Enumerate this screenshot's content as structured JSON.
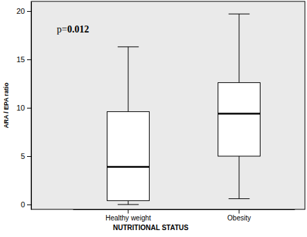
{
  "chart_data": {
    "type": "box",
    "annotation": "p=0.012",
    "x_label": "NUTRITIONAL STATUS",
    "y_label": "ARA / EPA ratio",
    "categories": [
      "Healthy weight",
      "Obesity"
    ],
    "min": [
      0.0,
      0.6
    ],
    "q1": [
      0.4,
      5.0
    ],
    "median": [
      3.9,
      9.4
    ],
    "q3": [
      9.6,
      12.6
    ],
    "max": [
      16.3,
      19.7
    ],
    "ylim": [
      -0.5,
      21
    ],
    "yticks": [
      0,
      5,
      10,
      15,
      20
    ],
    "grid": false,
    "color": "#ffffff"
  }
}
